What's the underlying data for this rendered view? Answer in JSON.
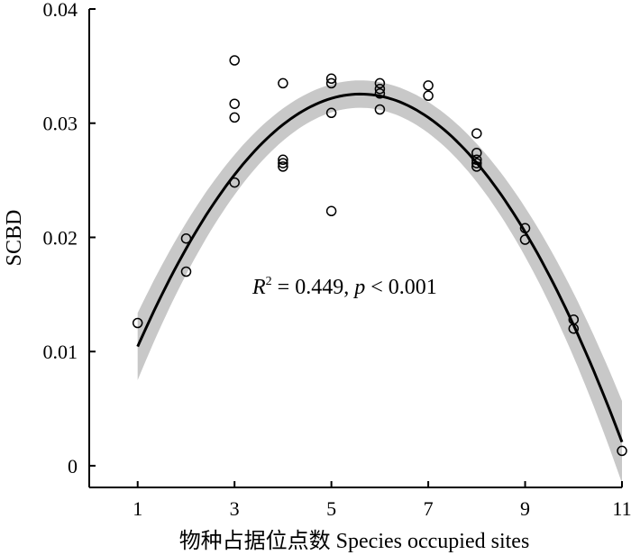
{
  "chart_data": {
    "type": "scatter",
    "xlabel": "物种占据位点数 Species occupied sites",
    "ylabel": "SCBD",
    "xlim": [
      0,
      11
    ],
    "ylim": [
      -0.0019,
      0.04
    ],
    "xticks": [
      "1",
      "3",
      "5",
      "7",
      "9",
      "11"
    ],
    "xtick_values": [
      1,
      3,
      5,
      7,
      9,
      11
    ],
    "yticks": [
      "0",
      "0.01",
      "0.02",
      "0.03",
      "0.04"
    ],
    "ytick_values": [
      0,
      0.01,
      0.02,
      0.03,
      0.04
    ],
    "grid": false,
    "annotation": {
      "r_symbol": "R",
      "r_sup": "2",
      "r_value": " = 0.449, ",
      "p_symbol": "p",
      "p_value": " < 0.001"
    },
    "points": [
      {
        "x": 1,
        "y": 0.0125
      },
      {
        "x": 2,
        "y": 0.0199
      },
      {
        "x": 2,
        "y": 0.017
      },
      {
        "x": 3,
        "y": 0.0355
      },
      {
        "x": 3,
        "y": 0.0317
      },
      {
        "x": 3,
        "y": 0.0305
      },
      {
        "x": 3,
        "y": 0.0248
      },
      {
        "x": 4,
        "y": 0.0335
      },
      {
        "x": 4,
        "y": 0.0268
      },
      {
        "x": 4,
        "y": 0.0265
      },
      {
        "x": 4,
        "y": 0.0262
      },
      {
        "x": 5,
        "y": 0.0339
      },
      {
        "x": 5,
        "y": 0.0335
      },
      {
        "x": 5,
        "y": 0.0309
      },
      {
        "x": 5,
        "y": 0.0223
      },
      {
        "x": 6,
        "y": 0.0335
      },
      {
        "x": 6,
        "y": 0.033
      },
      {
        "x": 6,
        "y": 0.0326
      },
      {
        "x": 6,
        "y": 0.0312
      },
      {
        "x": 7,
        "y": 0.0333
      },
      {
        "x": 7,
        "y": 0.0324
      },
      {
        "x": 8,
        "y": 0.0291
      },
      {
        "x": 8,
        "y": 0.0274
      },
      {
        "x": 8,
        "y": 0.0268
      },
      {
        "x": 8,
        "y": 0.0265
      },
      {
        "x": 8,
        "y": 0.0262
      },
      {
        "x": 9,
        "y": 0.0208
      },
      {
        "x": 9,
        "y": 0.0198
      },
      {
        "x": 10,
        "y": 0.0128
      },
      {
        "x": 10,
        "y": 0.012
      },
      {
        "x": 11,
        "y": 0.0013
      }
    ],
    "fit": {
      "type": "quadratic",
      "vertex_x": 5.6,
      "vertex_y": 0.03255,
      "curvature": -0.001045,
      "x_range": [
        1,
        11
      ],
      "ci_halfwidth_center": 0.0012,
      "ci_halfwidth_edge": 0.0036
    },
    "colors": {
      "points": "#000000",
      "fit_line": "#000000",
      "ci_band": "#c8c8c8"
    }
  }
}
